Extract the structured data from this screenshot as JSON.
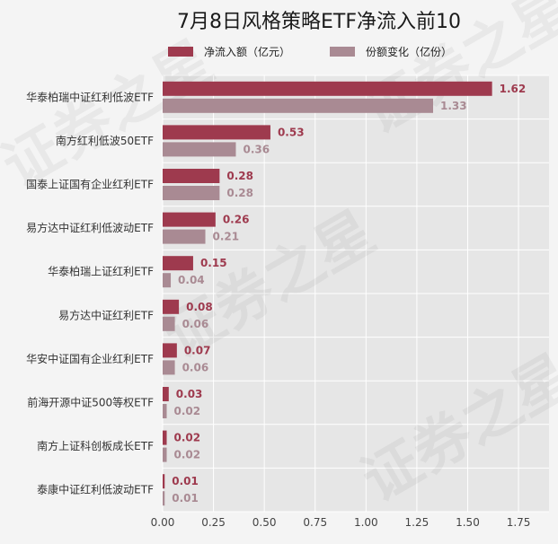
{
  "chart_data": {
    "type": "bar",
    "orientation": "horizontal",
    "title": "7月8日风格策略ETF净流入前10",
    "categories": [
      "华泰柏瑞中证红利低波ETF",
      "南方红利低波50ETF",
      "国泰上证国有企业红利ETF",
      "易方达中证红利低波动ETF",
      "华泰柏瑞上证红利ETF",
      "易方达中证红利ETF",
      "华安中证国有企业红利ETF",
      "前海开源中证500等权ETF",
      "南方上证科创板成长ETF",
      "泰康中证红利低波动ETF"
    ],
    "series": [
      {
        "name": "净流入额（亿元）",
        "color": "#9e3a4e",
        "values": [
          1.62,
          0.53,
          0.28,
          0.26,
          0.15,
          0.08,
          0.07,
          0.03,
          0.02,
          0.01
        ]
      },
      {
        "name": "份额变化（亿份）",
        "color": "#a98a93",
        "values": [
          1.33,
          0.36,
          0.28,
          0.21,
          0.04,
          0.06,
          0.06,
          0.02,
          0.02,
          0.01
        ]
      }
    ],
    "xticks": [
      "0.00",
      "0.25",
      "0.50",
      "0.75",
      "1.00",
      "1.25",
      "1.50",
      "1.75"
    ],
    "xlim": [
      0,
      1.9
    ],
    "legend_position": "top",
    "grid": true,
    "watermark": "证券之星"
  }
}
